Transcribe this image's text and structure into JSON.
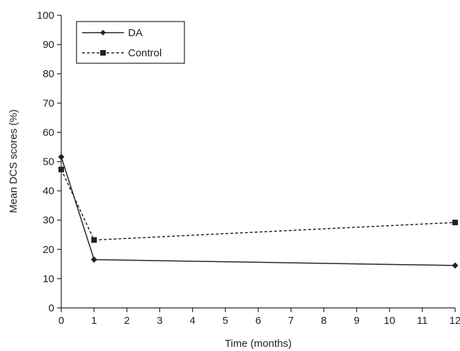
{
  "chart_data": {
    "type": "line",
    "title": "",
    "xlabel": "Time (months)",
    "ylabel": "Mean DCS scores (%)",
    "xlim": [
      0,
      12
    ],
    "ylim": [
      0,
      100
    ],
    "x_ticks": [
      "0",
      "1",
      "2",
      "3",
      "4",
      "5",
      "6",
      "7",
      "8",
      "9",
      "10",
      "11",
      "12"
    ],
    "y_ticks": [
      "0",
      "10",
      "20",
      "30",
      "40",
      "50",
      "60",
      "70",
      "80",
      "90",
      "100"
    ],
    "grid": false,
    "legend_position": "top-left",
    "series": [
      {
        "name": "DA",
        "marker": "diamond",
        "line_style": "solid",
        "color": "#222222",
        "x": [
          0,
          1,
          12
        ],
        "y": [
          51.6,
          16.5,
          14.5
        ]
      },
      {
        "name": "Control",
        "marker": "square",
        "line_style": "dashed",
        "color": "#222222",
        "x": [
          0,
          1,
          12
        ],
        "y": [
          47.3,
          23.2,
          29.2
        ]
      }
    ]
  }
}
